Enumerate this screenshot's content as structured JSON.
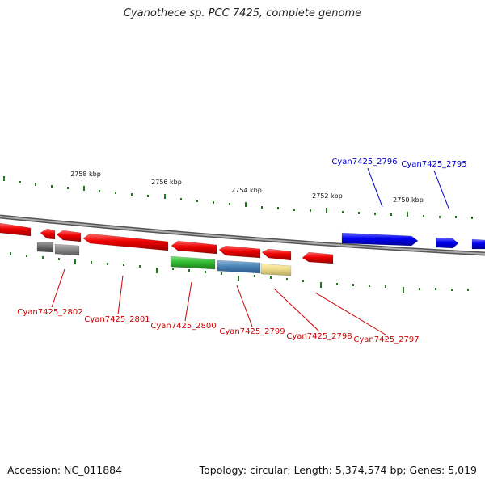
{
  "title": "Cyanothece sp. PCC 7425, complete genome",
  "footer": {
    "accession": "Accession: NC_011884",
    "summary": "Topology: circular; Length: 5,374,574 bp; Genes: 5,019"
  },
  "colors": {
    "backbone": "#808080",
    "tick": "#1a7a1a",
    "forward_gene": "#0000ee",
    "reverse_gene": "#ee0000",
    "reverse_label": "#cc0000",
    "forward_label": "#0000cc"
  },
  "scale_labels": [
    "2758 kbp",
    "2756 kbp",
    "2754 kbp",
    "2752 kbp",
    "2750 kbp"
  ],
  "gene_labels": [
    {
      "text": "Cyan7425_2796",
      "strand": "forward"
    },
    {
      "text": "Cyan7425_2795",
      "strand": "forward"
    },
    {
      "text": "Cyan7425_2802",
      "strand": "reverse"
    },
    {
      "text": "Cyan7425_2801",
      "strand": "reverse"
    },
    {
      "text": "Cyan7425_2800",
      "strand": "reverse"
    },
    {
      "text": "Cyan7425_2799",
      "strand": "reverse"
    },
    {
      "text": "Cyan7425_2798",
      "strand": "reverse"
    },
    {
      "text": "Cyan7425_2797",
      "strand": "reverse"
    }
  ]
}
